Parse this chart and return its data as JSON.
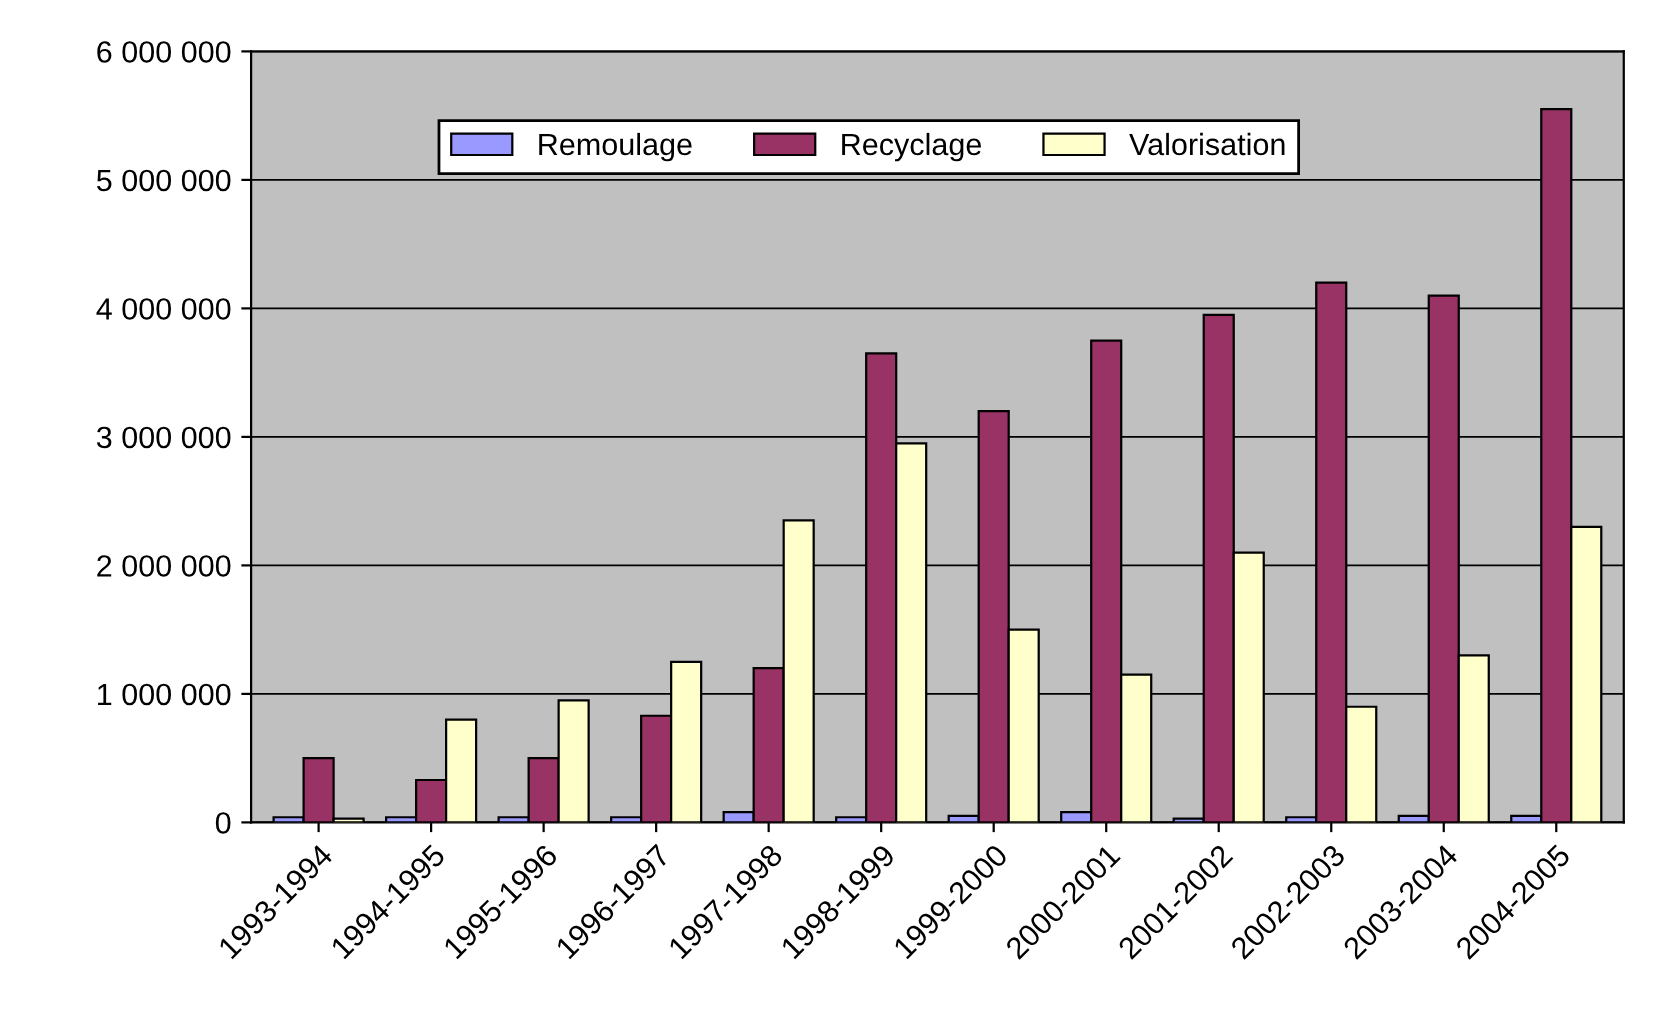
{
  "chart_data": {
    "type": "bar",
    "categories": [
      "1993-1994",
      "1994-1995",
      "1995-1996",
      "1996-1997",
      "1997-1998",
      "1998-1999",
      "1999-2000",
      "2000-2001",
      "2001-2002",
      "2002-2003",
      "2003-2004",
      "2004-2005"
    ],
    "series": [
      {
        "name": "Remoulage",
        "color": "#9999ff",
        "values": [
          40000,
          40000,
          40000,
          40000,
          80000,
          40000,
          50000,
          80000,
          30000,
          40000,
          50000,
          50000
        ]
      },
      {
        "name": "Recyclage",
        "color": "#993366",
        "values": [
          500000,
          330000,
          500000,
          830000,
          1200000,
          3650000,
          3200000,
          3750000,
          3950000,
          4200000,
          4100000,
          5550000
        ]
      },
      {
        "name": "Valorisation",
        "color": "#ffffcc",
        "values": [
          30000,
          800000,
          950000,
          1250000,
          2350000,
          2950000,
          1500000,
          1150000,
          2100000,
          900000,
          1300000,
          2300000
        ]
      }
    ],
    "ylim": [
      0,
      6000000
    ],
    "yticks": [
      {
        "value": 0,
        "label": "0"
      },
      {
        "value": 1000000,
        "label": "1 000 000"
      },
      {
        "value": 2000000,
        "label": "2 000 000"
      },
      {
        "value": 3000000,
        "label": "3 000 000"
      },
      {
        "value": 4000000,
        "label": "4 000 000"
      },
      {
        "value": 5000000,
        "label": "5 000 000"
      },
      {
        "value": 6000000,
        "label": "6 000 000"
      }
    ],
    "grid": "y",
    "legend": "top"
  }
}
